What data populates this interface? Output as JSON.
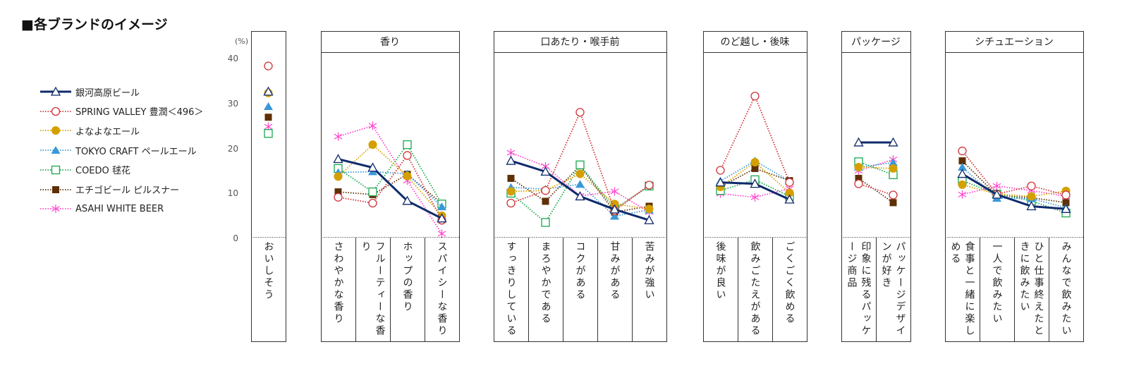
{
  "chart_data": {
    "type": "line",
    "title": "■各ブランドのイメージ",
    "ylabel": "(%)",
    "ylim": [
      0,
      40
    ],
    "yticks": [
      0,
      10,
      20,
      30,
      40
    ],
    "legend_position": "left",
    "groups": [
      {
        "title": "",
        "categories": [
          "おいしそう"
        ]
      },
      {
        "title": "香り",
        "categories": [
          "さわやかな香り",
          "フルーティーな香り",
          "ホップの香り",
          "スパイシーな香り"
        ]
      },
      {
        "title": "口あたり・喉手前",
        "categories": [
          "すっきりしている",
          "まろやかである",
          "コクがある",
          "甘みがある",
          "苦みが強い"
        ]
      },
      {
        "title": "のど越し・後味",
        "categories": [
          "後味が良い",
          "飲みごたえがある",
          "ごくごく飲める"
        ]
      },
      {
        "title": "パッケージ",
        "categories": [
          "印象に残るパッケージ商品",
          "パッケージデザインが好き"
        ]
      },
      {
        "title": "シチュエーション",
        "categories": [
          "食事と一緒に楽しめる",
          "一人で飲みたい",
          "ひと仕事終えたときに飲みたい",
          "みんなで飲みたい"
        ]
      }
    ],
    "series": [
      {
        "name": "銀河高原ビール",
        "color": "#0f2a6b",
        "marker": "open-triangle",
        "line": "solid",
        "values": [
          32.8,
          17.8,
          15.9,
          8.5,
          4.6,
          17.4,
          15.0,
          9.5,
          6.6,
          4.2,
          12.6,
          12.3,
          8.8,
          21.5,
          21.5,
          14.5,
          9.9,
          7.3,
          6.7
        ]
      },
      {
        "name": "SPRING VALLEY 豊潤＜496＞",
        "color": "#d0343a",
        "marker": "open-circle",
        "line": "dotted",
        "values": [
          38.5,
          9.3,
          8.0,
          18.6,
          4.2,
          8.0,
          10.8,
          28.2,
          6.3,
          12.0,
          15.3,
          31.8,
          12.6,
          12.3,
          9.8,
          19.6,
          10.0,
          11.8,
          9.8
        ]
      },
      {
        "name": "よなよなエール",
        "color": "#d4a000",
        "marker": "filled-circle",
        "line": "dotted",
        "values": [
          32.5,
          13.9,
          21.0,
          14.0,
          5.2,
          10.6,
          10.8,
          14.5,
          7.8,
          6.7,
          11.6,
          17.1,
          10.3,
          16.0,
          15.7,
          12.1,
          10.0,
          9.5,
          10.7
        ]
      },
      {
        "name": "TOKYO CRAFT ペールエール",
        "color": "#3a98d8",
        "marker": "filled-triangle",
        "line": "dotted",
        "values": [
          29.5,
          14.8,
          15.0,
          14.5,
          7.2,
          11.5,
          11.1,
          12.2,
          5.1,
          6.5,
          12.9,
          17.4,
          12.9,
          16.0,
          17.0,
          16.0,
          9.1,
          9.0,
          7.0
        ]
      },
      {
        "name": "COEDO 毬花",
        "color": "#1aa84f",
        "marker": "open-square",
        "line": "dotted",
        "values": [
          23.5,
          15.7,
          10.5,
          21.0,
          7.8,
          10.2,
          3.7,
          16.5,
          6.7,
          11.8,
          10.8,
          13.2,
          9.5,
          17.2,
          14.3,
          13.0,
          10.0,
          8.5,
          5.8
        ]
      },
      {
        "name": "エチゴビール ピルスナー",
        "color": "#5e3006",
        "marker": "filled-square",
        "line": "dotted",
        "values": [
          27.1,
          10.5,
          9.9,
          14.4,
          7.9,
          13.5,
          8.4,
          16.3,
          6.0,
          7.3,
          11.6,
          15.7,
          13.0,
          13.5,
          8.1,
          17.4,
          9.7,
          9.2,
          8.1
        ]
      },
      {
        "name": "ASAHI WHITE BEER",
        "color": "#ff44cc",
        "marker": "asterisk",
        "line": "dotted",
        "values": [
          25.0,
          22.8,
          25.2,
          13.0,
          1.2,
          19.2,
          16.2,
          9.6,
          10.6,
          6.0,
          10.1,
          9.3,
          11.2,
          15.2,
          17.7,
          9.9,
          11.8,
          10.8,
          9.5
        ]
      }
    ]
  }
}
